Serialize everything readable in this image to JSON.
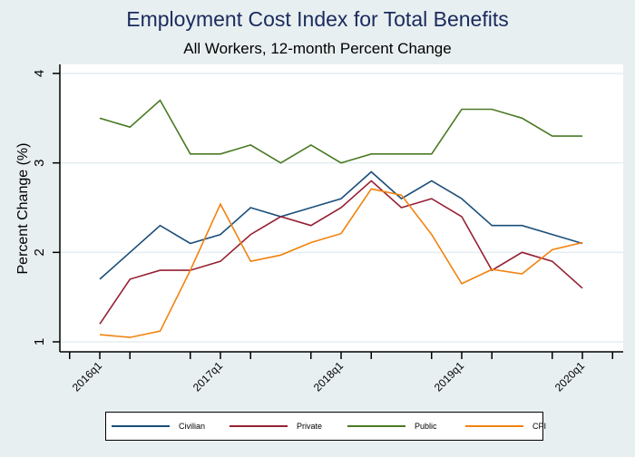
{
  "chart_data": {
    "type": "line",
    "title": "Employment Cost Index for Total Benefits",
    "subtitle": "All Workers, 12-month Percent Change",
    "xlabel": "",
    "ylabel": "Percent Change (%)",
    "ylim": [
      1,
      4
    ],
    "yticks": [
      1,
      2,
      3,
      4
    ],
    "x": [
      "2016q1",
      "2016q2",
      "2016q3",
      "2016q4",
      "2017q1",
      "2017q2",
      "2017q3",
      "2017q4",
      "2018q1",
      "2018q2",
      "2018q3",
      "2018q4",
      "2019q1",
      "2019q2",
      "2019q3",
      "2019q4",
      "2020q1"
    ],
    "xtick_labels": [
      "2016q1",
      "2017q1",
      "2018q1",
      "2019q1",
      "2020q1"
    ],
    "grid": true,
    "legend_position": "bottom",
    "series": [
      {
        "name": "Civilian",
        "color": "#1a4e7a",
        "values": [
          1.7,
          2.0,
          2.3,
          2.1,
          2.2,
          2.5,
          2.4,
          2.5,
          2.6,
          2.9,
          2.6,
          2.8,
          2.6,
          2.3,
          2.3,
          2.2,
          2.1
        ]
      },
      {
        "name": "Private",
        "color": "#962133",
        "values": [
          1.2,
          1.7,
          1.8,
          1.8,
          1.9,
          2.2,
          2.4,
          2.3,
          2.5,
          2.8,
          2.5,
          2.6,
          2.4,
          1.8,
          2.0,
          1.9,
          1.6
        ]
      },
      {
        "name": "Public",
        "color": "#4a7a24",
        "values": [
          3.5,
          3.4,
          3.7,
          3.1,
          3.1,
          3.2,
          3.0,
          3.2,
          3.0,
          3.1,
          3.1,
          3.1,
          3.6,
          3.6,
          3.5,
          3.3,
          3.3
        ]
      },
      {
        "name": "CPI",
        "color": "#f2820f",
        "values": [
          1.08,
          1.05,
          1.12,
          1.8,
          2.54,
          1.9,
          1.97,
          2.11,
          2.21,
          2.71,
          2.64,
          2.2,
          1.65,
          1.81,
          1.76,
          2.03,
          2.11
        ]
      }
    ]
  }
}
